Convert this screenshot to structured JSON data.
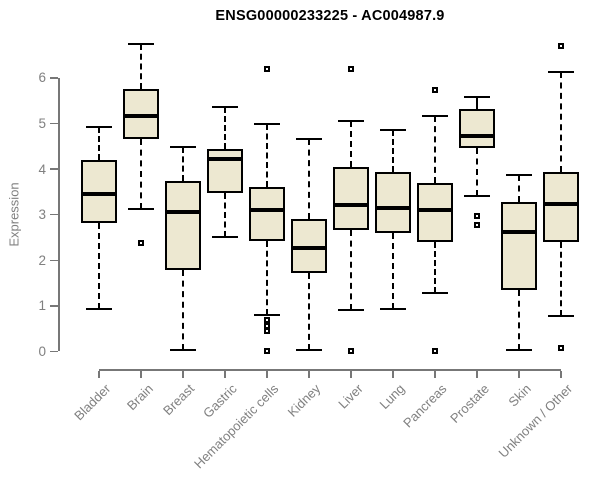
{
  "title": "ENSG00000233225 - AC004987.9",
  "colors": {
    "background": "#ffffff",
    "box_fill": "#ede8d1",
    "box_border": "#000000",
    "median": "#000000",
    "axis": "#777777",
    "axis_text": "#808080",
    "title_text": "#000000"
  },
  "chart_data": {
    "type": "boxplot",
    "title": "ENSG00000233225 - AC004987.9",
    "xlabel": "",
    "ylabel": "Expression",
    "ylim": [
      0,
      6.9
    ],
    "yticks": [
      0,
      1,
      2,
      3,
      4,
      5,
      6
    ],
    "grid": false,
    "legend": null,
    "categories": [
      "Bladder",
      "Brain",
      "Breast",
      "Gastric",
      "Hematopoietic cells",
      "Kidney",
      "Liver",
      "Lung",
      "Pancreas",
      "Prostate",
      "Skin",
      "Unknown / Other"
    ],
    "series": [
      {
        "label": "Bladder",
        "whisker_low": 0.93,
        "q1": 2.82,
        "median": 3.45,
        "q3": 4.19,
        "whisker_high": 4.93,
        "outliers": []
      },
      {
        "label": "Brain",
        "whisker_low": 3.13,
        "q1": 4.65,
        "median": 5.16,
        "q3": 5.76,
        "whisker_high": 6.75,
        "outliers": [
          2.37
        ]
      },
      {
        "label": "Breast",
        "whisker_low": 0.03,
        "q1": 1.78,
        "median": 3.07,
        "q3": 3.73,
        "whisker_high": 4.48,
        "outliers": []
      },
      {
        "label": "Gastric",
        "whisker_low": 2.51,
        "q1": 3.47,
        "median": 4.23,
        "q3": 4.45,
        "whisker_high": 5.36,
        "outliers": []
      },
      {
        "label": "Hematopoietic cells",
        "whisker_low": 0.79,
        "q1": 2.43,
        "median": 3.1,
        "q3": 3.6,
        "whisker_high": 4.98,
        "outliers": [
          6.2,
          0.68,
          0.56,
          0.44,
          0.02
        ]
      },
      {
        "label": "Kidney",
        "whisker_low": 0.03,
        "q1": 1.72,
        "median": 2.27,
        "q3": 2.9,
        "whisker_high": 4.67,
        "outliers": []
      },
      {
        "label": "Liver",
        "whisker_low": 0.9,
        "q1": 2.67,
        "median": 3.22,
        "q3": 4.05,
        "whisker_high": 5.05,
        "outliers": [
          6.2,
          0.02
        ]
      },
      {
        "label": "Lung",
        "whisker_low": 0.93,
        "q1": 2.6,
        "median": 3.14,
        "q3": 3.94,
        "whisker_high": 4.85,
        "outliers": []
      },
      {
        "label": "Pancreas",
        "whisker_low": 1.28,
        "q1": 2.4,
        "median": 3.1,
        "q3": 3.7,
        "whisker_high": 5.16,
        "outliers": [
          5.74,
          0.02
        ]
      },
      {
        "label": "Prostate",
        "whisker_low": 3.4,
        "q1": 4.46,
        "median": 4.72,
        "q3": 5.31,
        "whisker_high": 5.58,
        "outliers": [
          2.97,
          2.78
        ]
      },
      {
        "label": "Skin",
        "whisker_low": 0.03,
        "q1": 1.35,
        "median": 2.63,
        "q3": 3.27,
        "whisker_high": 3.88,
        "outliers": []
      },
      {
        "label": "Unknown / Other",
        "whisker_low": 0.78,
        "q1": 2.4,
        "median": 3.24,
        "q3": 3.93,
        "whisker_high": 6.13,
        "outliers": [
          6.7,
          0.08
        ]
      }
    ]
  }
}
